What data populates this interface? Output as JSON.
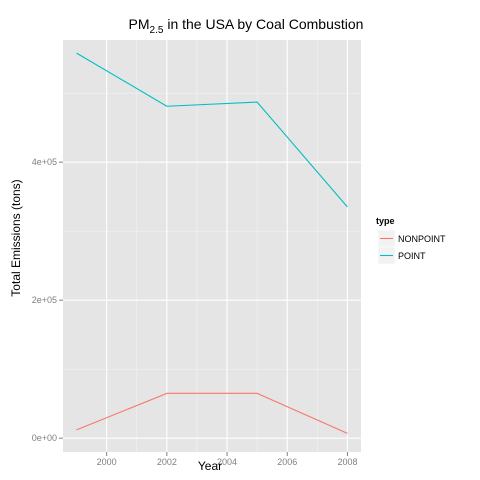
{
  "chart_data": {
    "type": "line",
    "title": {
      "main": "PM",
      "subscript": "2.5",
      "rest": " in the USA by Coal Combustion"
    },
    "xlabel": "Year",
    "ylabel": "Total Emissions (tons)",
    "x": [
      1999,
      2002,
      2005,
      2008
    ],
    "xlim": [
      1998.55,
      2008.45
    ],
    "ylim": [
      -20000,
      577000
    ],
    "x_ticks": [
      2000,
      2002,
      2004,
      2006,
      2008
    ],
    "x_tick_labels": [
      "2000",
      "2002",
      "2004",
      "2006",
      "2008"
    ],
    "y_ticks": [
      0,
      200000,
      400000
    ],
    "y_tick_labels": [
      "0e+00",
      "2e+05",
      "4e+05"
    ],
    "grid": true,
    "legend": {
      "title": "type",
      "placement": "right"
    },
    "series": [
      {
        "name": "NONPOINT",
        "color": "#F8766D",
        "values": [
          12000,
          65000,
          65000,
          7000
        ]
      },
      {
        "name": "POINT",
        "color": "#00BFC4",
        "values": [
          558000,
          481000,
          487000,
          335000
        ]
      }
    ]
  }
}
